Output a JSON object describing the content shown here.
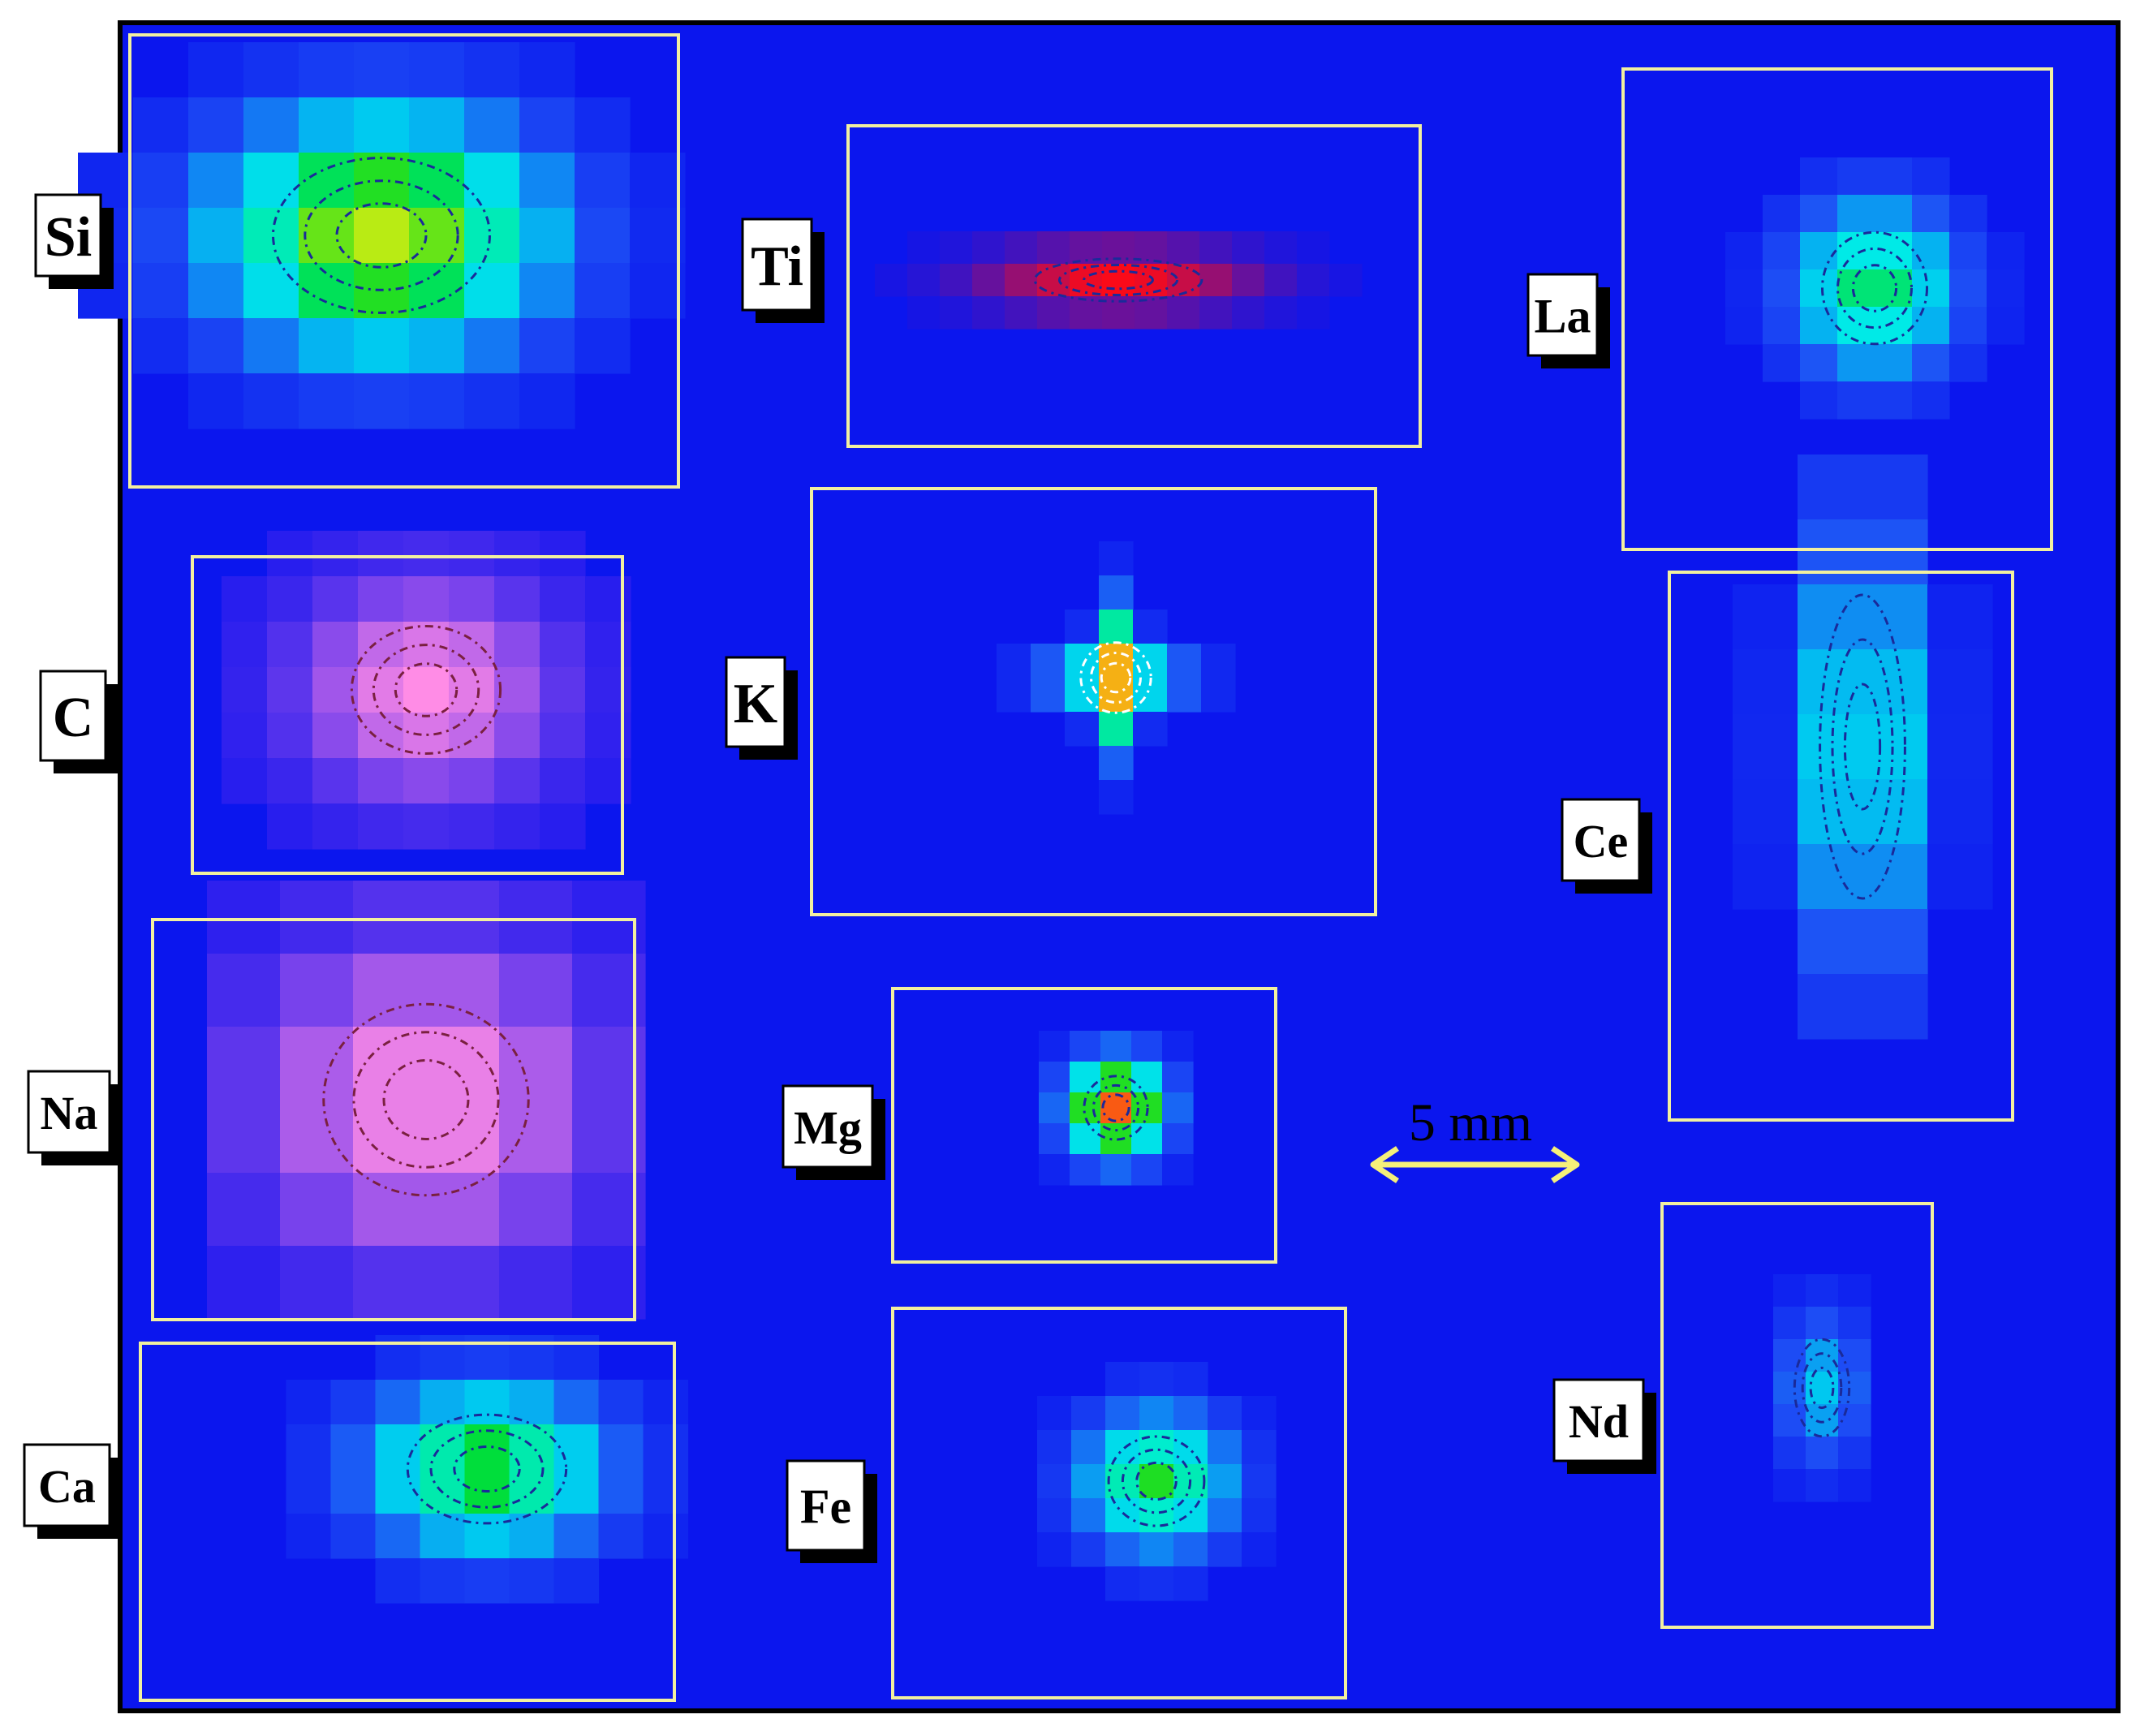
{
  "scale_bar": {
    "label": "5 mm"
  },
  "panels": [
    {
      "element": "Si",
      "colormap": "jet",
      "peak": 0.8,
      "spread": [
        4.2,
        3.0
      ]
    },
    {
      "element": "Ti",
      "colormap": "red",
      "peak": 1.0,
      "spread": [
        5.5,
        1.4
      ]
    },
    {
      "element": "La",
      "colormap": "jet",
      "peak": 0.6,
      "spread": [
        3.0,
        3.2
      ]
    },
    {
      "element": "C",
      "colormap": "pink",
      "peak": 1.0,
      "spread": [
        3.5,
        3.0
      ]
    },
    {
      "element": "K",
      "colormap": "jet",
      "peak": 0.95,
      "spread": [
        2.2,
        2.2
      ]
    },
    {
      "element": "Ce",
      "colormap": "jet",
      "peak": 0.45,
      "spread": [
        1.4,
        5.0
      ]
    },
    {
      "element": "Na",
      "colormap": "pink",
      "peak": 1.0,
      "spread": [
        3.0,
        2.8
      ]
    },
    {
      "element": "Mg",
      "colormap": "jet",
      "peak": 0.95,
      "spread": [
        2.2,
        2.2
      ]
    },
    {
      "element": "Ca",
      "colormap": "jet",
      "peak": 0.65,
      "spread": [
        3.8,
        2.6
      ]
    },
    {
      "element": "Fe",
      "colormap": "jet",
      "peak": 0.65,
      "spread": [
        3.0,
        2.8
      ]
    },
    {
      "element": "Nd",
      "colormap": "jet",
      "peak": 0.35,
      "spread": [
        1.8,
        3.2
      ]
    }
  ]
}
